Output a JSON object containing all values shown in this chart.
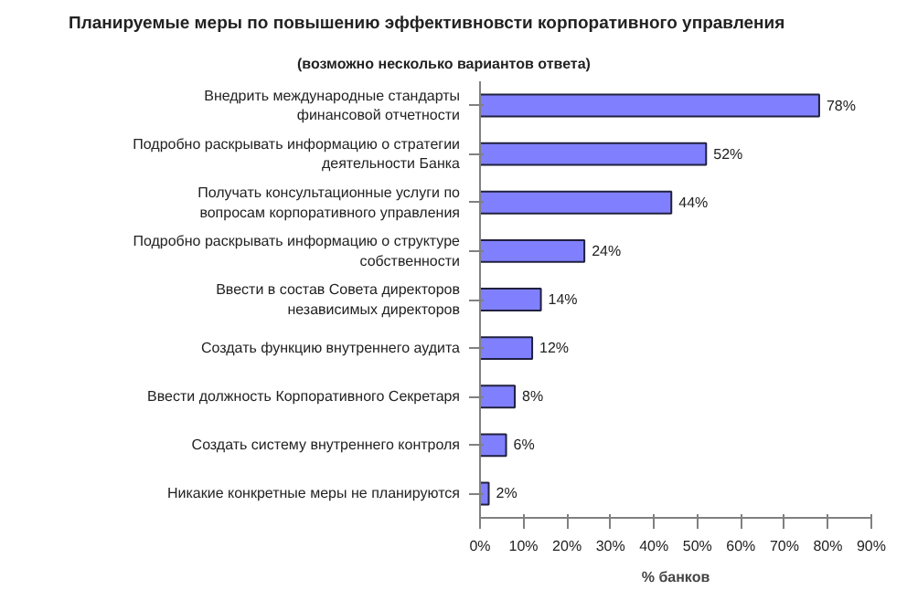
{
  "chart_data": {
    "type": "bar",
    "orientation": "horizontal",
    "title": "Планируемые меры по повышению эффективновсти корпоративного управления",
    "subtitle": "(возможно несколько вариантов ответа)",
    "xlabel": "% банков",
    "categories": [
      "Внедрить международные стандарты финансовой отчетности",
      "Подробно раскрывать информацию о стратегии деятельности Банка",
      "Получать консультационные услуги по вопросам корпоративного управления",
      "Подробно раскрывать информацию о структуре собственности",
      "Ввести в состав Совета директоров независимых директоров",
      "Создать функцию внутреннего аудита",
      "Ввести должность Корпоративного Секретаря",
      "Создать систему внутреннего контроля",
      "Никакие конкретные меры не планируются"
    ],
    "values": [
      78,
      52,
      44,
      24,
      14,
      12,
      8,
      6,
      2
    ],
    "value_labels": [
      "78%",
      "52%",
      "44%",
      "24%",
      "14%",
      "12%",
      "8%",
      "6%",
      "2%"
    ],
    "color": "#8080ff",
    "xlim": [
      0,
      90
    ],
    "xticks": [
      {
        "value": 0,
        "label": "0%"
      },
      {
        "value": 10,
        "label": "10%"
      },
      {
        "value": 20,
        "label": "20%"
      },
      {
        "value": 30,
        "label": "30%"
      },
      {
        "value": 40,
        "label": "40%"
      },
      {
        "value": 50,
        "label": "50%"
      },
      {
        "value": 60,
        "label": "60%"
      },
      {
        "value": 70,
        "label": "70%"
      },
      {
        "value": 80,
        "label": "80%"
      },
      {
        "value": 90,
        "label": "90%"
      }
    ],
    "grid": false
  }
}
